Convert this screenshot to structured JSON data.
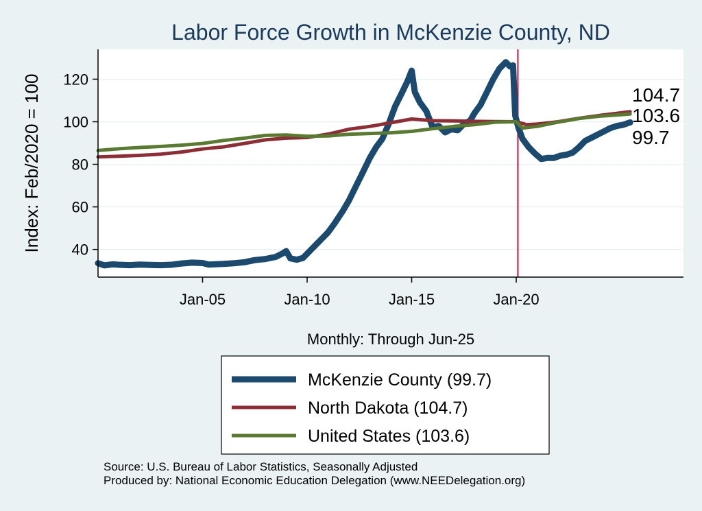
{
  "chart_data": {
    "type": "line",
    "title": "Labor Force Growth in McKenzie  County, ND",
    "ylabel": "Index: Feb/2020 = 100",
    "xlabel": "Monthly: Through Jun-25",
    "ylim": [
      27,
      134
    ],
    "xlim": [
      2000.0,
      2028.0
    ],
    "yticks": [
      40,
      60,
      80,
      100,
      120
    ],
    "xticks": [
      {
        "label": "Jan-05",
        "value": 2005.0
      },
      {
        "label": "Jan-10",
        "value": 2010.0
      },
      {
        "label": "Jan-15",
        "value": 2015.0
      },
      {
        "label": "Jan-20",
        "value": 2020.0
      }
    ],
    "reference_line": {
      "x": 2020.08,
      "color": "#c8103c"
    },
    "series": [
      {
        "name": "McKenzie  County",
        "legend": "McKenzie  County (99.7)",
        "end_label": "99.7",
        "color": "#1b4a6e",
        "width": 9,
        "points": [
          [
            2000.0,
            33.5
          ],
          [
            2000.3,
            32.5
          ],
          [
            2000.7,
            33.0
          ],
          [
            2001.0,
            32.8
          ],
          [
            2001.5,
            32.6
          ],
          [
            2002.0,
            32.9
          ],
          [
            2002.5,
            32.7
          ],
          [
            2003.0,
            32.6
          ],
          [
            2003.5,
            32.8
          ],
          [
            2004.0,
            33.4
          ],
          [
            2004.5,
            33.8
          ],
          [
            2005.0,
            33.6
          ],
          [
            2005.3,
            32.9
          ],
          [
            2005.7,
            33.1
          ],
          [
            2006.0,
            33.2
          ],
          [
            2006.5,
            33.5
          ],
          [
            2007.0,
            34.0
          ],
          [
            2007.5,
            35.0
          ],
          [
            2008.0,
            35.5
          ],
          [
            2008.5,
            36.5
          ],
          [
            2008.8,
            38.0
          ],
          [
            2009.0,
            39.2
          ],
          [
            2009.2,
            35.8
          ],
          [
            2009.5,
            35.2
          ],
          [
            2009.8,
            36.0
          ],
          [
            2010.0,
            38.0
          ],
          [
            2010.3,
            41.0
          ],
          [
            2010.7,
            45.0
          ],
          [
            2011.0,
            48.0
          ],
          [
            2011.3,
            52.0
          ],
          [
            2011.7,
            58.0
          ],
          [
            2012.0,
            63.0
          ],
          [
            2012.3,
            69.0
          ],
          [
            2012.7,
            77.0
          ],
          [
            2013.0,
            83.0
          ],
          [
            2013.3,
            88.0
          ],
          [
            2013.6,
            92.0
          ],
          [
            2013.9,
            99.0
          ],
          [
            2014.2,
            107.0
          ],
          [
            2014.5,
            113.0
          ],
          [
            2014.8,
            119.0
          ],
          [
            2015.0,
            124.0
          ],
          [
            2015.15,
            114.0
          ],
          [
            2015.4,
            109.0
          ],
          [
            2015.7,
            105.0
          ],
          [
            2016.0,
            97.5
          ],
          [
            2016.3,
            98.0
          ],
          [
            2016.6,
            95.0
          ],
          [
            2016.9,
            96.5
          ],
          [
            2017.2,
            96.0
          ],
          [
            2017.5,
            99.0
          ],
          [
            2017.8,
            100.5
          ],
          [
            2018.0,
            104.0
          ],
          [
            2018.3,
            108.0
          ],
          [
            2018.6,
            114.0
          ],
          [
            2018.9,
            120.0
          ],
          [
            2019.2,
            125.0
          ],
          [
            2019.5,
            128.0
          ],
          [
            2019.7,
            126.0
          ],
          [
            2019.85,
            126.5
          ],
          [
            2019.95,
            103.0
          ],
          [
            2020.1,
            97.5
          ],
          [
            2020.3,
            92.0
          ],
          [
            2020.6,
            88.0
          ],
          [
            2020.9,
            85.0
          ],
          [
            2021.2,
            82.5
          ],
          [
            2021.5,
            83.0
          ],
          [
            2021.8,
            83.0
          ],
          [
            2022.1,
            84.0
          ],
          [
            2022.4,
            84.5
          ],
          [
            2022.7,
            85.5
          ],
          [
            2023.0,
            88.0
          ],
          [
            2023.3,
            91.0
          ],
          [
            2023.6,
            92.5
          ],
          [
            2023.9,
            94.0
          ],
          [
            2024.2,
            95.5
          ],
          [
            2024.5,
            97.0
          ],
          [
            2024.8,
            98.0
          ],
          [
            2025.1,
            98.5
          ],
          [
            2025.3,
            99.2
          ],
          [
            2025.45,
            99.7
          ]
        ]
      },
      {
        "name": "North Dakota",
        "legend": "North Dakota (104.7)",
        "end_label": "104.7",
        "color": "#8b2e36",
        "width": 5,
        "points": [
          [
            2000.0,
            83.5
          ],
          [
            2001.0,
            83.8
          ],
          [
            2002.0,
            84.2
          ],
          [
            2003.0,
            84.8
          ],
          [
            2004.0,
            85.8
          ],
          [
            2005.0,
            87.2
          ],
          [
            2006.0,
            88.2
          ],
          [
            2007.0,
            89.8
          ],
          [
            2008.0,
            91.5
          ],
          [
            2009.0,
            92.3
          ],
          [
            2010.0,
            92.6
          ],
          [
            2011.0,
            94.2
          ],
          [
            2012.0,
            96.5
          ],
          [
            2013.0,
            97.8
          ],
          [
            2014.0,
            99.5
          ],
          [
            2015.0,
            101.3
          ],
          [
            2016.0,
            100.5
          ],
          [
            2017.0,
            100.4
          ],
          [
            2018.0,
            100.2
          ],
          [
            2019.0,
            100.1
          ],
          [
            2020.0,
            100.0
          ],
          [
            2020.5,
            98.6
          ],
          [
            2021.0,
            98.9
          ],
          [
            2022.0,
            100.0
          ],
          [
            2023.0,
            101.6
          ],
          [
            2024.0,
            103.0
          ],
          [
            2025.0,
            104.2
          ],
          [
            2025.45,
            104.7
          ]
        ]
      },
      {
        "name": "United States",
        "legend": "United States (103.6)",
        "end_label": "103.6",
        "color": "#5a7a32",
        "width": 5,
        "points": [
          [
            2000.0,
            86.5
          ],
          [
            2001.0,
            87.3
          ],
          [
            2002.0,
            87.9
          ],
          [
            2003.0,
            88.4
          ],
          [
            2004.0,
            89.0
          ],
          [
            2005.0,
            89.8
          ],
          [
            2006.0,
            91.2
          ],
          [
            2007.0,
            92.3
          ],
          [
            2008.0,
            93.6
          ],
          [
            2009.0,
            93.8
          ],
          [
            2010.0,
            93.2
          ],
          [
            2011.0,
            93.3
          ],
          [
            2012.0,
            94.1
          ],
          [
            2013.0,
            94.5
          ],
          [
            2014.0,
            94.8
          ],
          [
            2015.0,
            95.5
          ],
          [
            2016.0,
            96.7
          ],
          [
            2017.0,
            97.8
          ],
          [
            2018.0,
            98.6
          ],
          [
            2019.0,
            99.8
          ],
          [
            2020.0,
            100.0
          ],
          [
            2020.3,
            97.0
          ],
          [
            2020.7,
            97.5
          ],
          [
            2021.0,
            97.8
          ],
          [
            2022.0,
            99.8
          ],
          [
            2023.0,
            101.5
          ],
          [
            2024.0,
            102.6
          ],
          [
            2025.0,
            103.3
          ],
          [
            2025.45,
            103.6
          ]
        ]
      }
    ]
  },
  "source_line": "Source: U.S. Bureau of Labor Statistics, Seasonally Adjusted",
  "produced_line": "Produced by: National Economic Education Delegation (www.NEEDelegation.org)"
}
